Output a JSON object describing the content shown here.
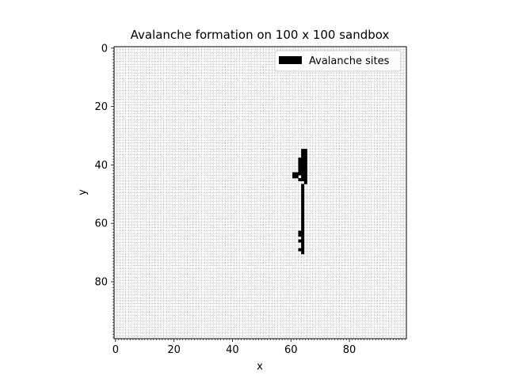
{
  "chart_data": {
    "type": "heatmap",
    "title": "Avalanche formation on 100 x 100 sandbox",
    "xlabel": "x",
    "ylabel": "y",
    "grid_size": [
      100,
      100
    ],
    "xlim": [
      -0.5,
      99.5
    ],
    "ylim": [
      99.5,
      -0.5
    ],
    "y_inverted": true,
    "grid": true,
    "x_ticks": [
      0,
      20,
      40,
      60,
      80
    ],
    "y_ticks": [
      0,
      20,
      40,
      60,
      80
    ],
    "legend": {
      "position": "upper-right",
      "entries": [
        {
          "label": "Avalanche sites",
          "color": "#000000"
        }
      ]
    },
    "colors": {
      "site": "#000000",
      "background": "#ffffff",
      "grid": "#9a9a9a"
    },
    "sites": [
      [
        64,
        35
      ],
      [
        65,
        35
      ],
      [
        64,
        36
      ],
      [
        65,
        36
      ],
      [
        64,
        37
      ],
      [
        65,
        37
      ],
      [
        63,
        38
      ],
      [
        64,
        38
      ],
      [
        65,
        38
      ],
      [
        63,
        39
      ],
      [
        64,
        39
      ],
      [
        65,
        39
      ],
      [
        63,
        40
      ],
      [
        64,
        40
      ],
      [
        65,
        40
      ],
      [
        63,
        41
      ],
      [
        64,
        41
      ],
      [
        65,
        41
      ],
      [
        63,
        42
      ],
      [
        64,
        42
      ],
      [
        65,
        42
      ],
      [
        61,
        43
      ],
      [
        62,
        43
      ],
      [
        63,
        43
      ],
      [
        64,
        43
      ],
      [
        65,
        43
      ],
      [
        61,
        44
      ],
      [
        62,
        44
      ],
      [
        64,
        44
      ],
      [
        65,
        44
      ],
      [
        63,
        45
      ],
      [
        64,
        45
      ],
      [
        65,
        45
      ],
      [
        65,
        46
      ],
      [
        64,
        47
      ],
      [
        64,
        48
      ],
      [
        64,
        49
      ],
      [
        64,
        50
      ],
      [
        64,
        51
      ],
      [
        64,
        52
      ],
      [
        64,
        53
      ],
      [
        64,
        54
      ],
      [
        64,
        55
      ],
      [
        64,
        56
      ],
      [
        64,
        57
      ],
      [
        64,
        58
      ],
      [
        64,
        59
      ],
      [
        64,
        60
      ],
      [
        64,
        61
      ],
      [
        64,
        62
      ],
      [
        63,
        63
      ],
      [
        64,
        63
      ],
      [
        63,
        64
      ],
      [
        64,
        64
      ],
      [
        64,
        65
      ],
      [
        63,
        66
      ],
      [
        64,
        66
      ],
      [
        64,
        67
      ],
      [
        64,
        68
      ],
      [
        63,
        69
      ],
      [
        64,
        69
      ],
      [
        64,
        70
      ]
    ]
  }
}
